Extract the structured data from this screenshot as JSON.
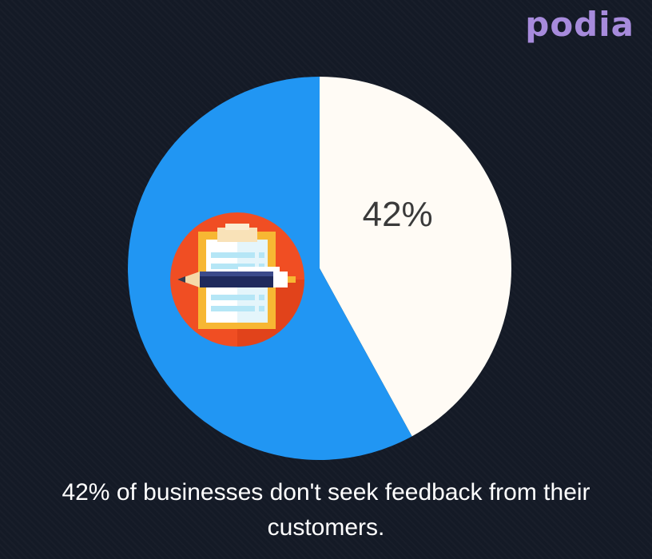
{
  "brand": {
    "logo_text": "podia",
    "logo_color": "#a78bdc"
  },
  "chart_data": {
    "type": "pie",
    "slices": [
      {
        "value": 42,
        "label": "42%",
        "color": "#fffbf5"
      },
      {
        "value": 58,
        "label": "",
        "color": "#2196f3"
      }
    ]
  },
  "icon": {
    "name": "clipboard-with-pen-icon",
    "circle_color": "#f04e23"
  },
  "caption": "42% of businesses don't seek feedback from their customers."
}
